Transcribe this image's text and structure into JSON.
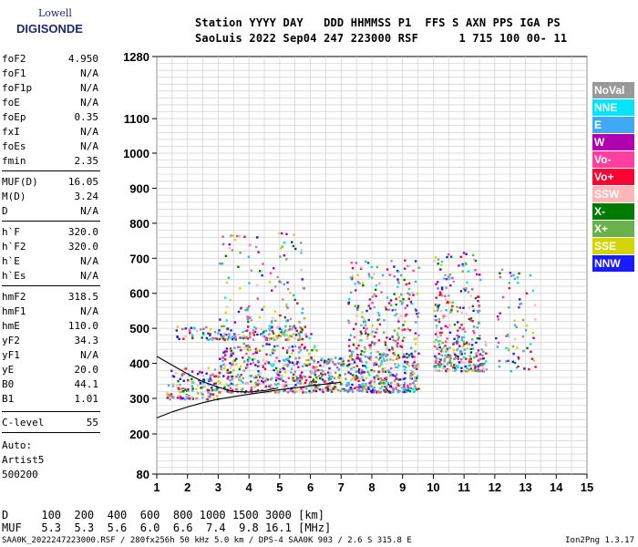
{
  "logo": {
    "line1": "Lowell",
    "line2": "DIGISONDE"
  },
  "header": {
    "line1": "Station YYYY DAY   DDD HHMMSS P1  FFS S AXN PPS IGA PS",
    "line2": "SaoLuis 2022 Sep04 247 223000 RSF      1 715 100 00- 11"
  },
  "params": [
    {
      "k": "foF2",
      "v": "4.950"
    },
    {
      "k": "foF1",
      "v": "N/A"
    },
    {
      "k": "foF1p",
      "v": "N/A"
    },
    {
      "k": "foE",
      "v": "N/A"
    },
    {
      "k": "foEp",
      "v": "0.35"
    },
    {
      "k": "fxI",
      "v": "N/A"
    },
    {
      "k": "foEs",
      "v": "N/A"
    },
    {
      "k": "fmin",
      "v": "2.35"
    },
    {
      "k": "MUF(D)",
      "v": "16.05"
    },
    {
      "k": "M(D)",
      "v": "3.24"
    },
    {
      "k": "D",
      "v": "N/A"
    },
    {
      "k": "h`F",
      "v": "320.0"
    },
    {
      "k": "h`F2",
      "v": "320.0"
    },
    {
      "k": "h`E",
      "v": "N/A"
    },
    {
      "k": "h`Es",
      "v": "N/A"
    },
    {
      "k": "hmF2",
      "v": "318.5"
    },
    {
      "k": "hmF1",
      "v": "N/A"
    },
    {
      "k": "hmE",
      "v": "110.0"
    },
    {
      "k": "yF2",
      "v": "34.3"
    },
    {
      "k": "yF1",
      "v": "N/A"
    },
    {
      "k": "yE",
      "v": "20.0"
    },
    {
      "k": "B0",
      "v": "44.1"
    },
    {
      "k": "B1",
      "v": "1.01"
    },
    {
      "k": "C-level",
      "v": "55"
    }
  ],
  "auto": [
    "Auto:",
    "Artist5",
    "500200"
  ],
  "legend": [
    {
      "label": "NoVal",
      "bg": "#999999",
      "fg": "#ffffff"
    },
    {
      "label": "NNE",
      "bg": "#00e5ff",
      "fg": "#ffffff"
    },
    {
      "label": "E",
      "bg": "#3fa9f5",
      "fg": "#ffffff"
    },
    {
      "label": "W",
      "bg": "#b000b0",
      "fg": "#ffffff"
    },
    {
      "label": "Vo-",
      "bg": "#ff3fa0",
      "fg": "#ffffff"
    },
    {
      "label": "Vo+",
      "bg": "#ff0033",
      "fg": "#ffffff"
    },
    {
      "label": "SSW",
      "bg": "#ffb6b6",
      "fg": "#ffffff"
    },
    {
      "label": "X-",
      "bg": "#007a00",
      "fg": "#ffffff"
    },
    {
      "label": "X+",
      "bg": "#6ab04c",
      "fg": "#ffffff"
    },
    {
      "label": "SSE",
      "bg": "#d4d400",
      "fg": "#ffffff"
    },
    {
      "label": "NNW",
      "bg": "#1a1aff",
      "fg": "#ffffff"
    }
  ],
  "footer": {
    "d_row": "D     100  200  400  600  800 1000 1500 3000 [km]",
    "muf_row": "MUF   5.3  5.3  5.6  6.0  6.6  7.4  9.8 16.1 [MHz]",
    "file_line": "SAA0K_2022247223000.RSF / 280fx256h 50 kHz 5.0 km / DPS-4 SAA0K 903 / 2.6 S 315.8 E",
    "version": "Ion2Png 1.3.17"
  },
  "chart_data": {
    "type": "scatter",
    "title": "",
    "xlabel": "",
    "ylabel": "",
    "xlim": [
      1,
      15
    ],
    "ylim": [
      80,
      1280
    ],
    "x_ticks": [
      1,
      2,
      3,
      4,
      5,
      6,
      7,
      8,
      9,
      10,
      11,
      12,
      13,
      14,
      15
    ],
    "y_ticks": [
      80,
      200,
      300,
      400,
      500,
      600,
      700,
      800,
      900,
      1000,
      1100,
      1280
    ],
    "grid": true,
    "clusters": [
      {
        "name": "low-band F-trace",
        "x": [
          1.3,
          3.0
        ],
        "y": [
          300,
          390
        ],
        "density": 150
      },
      {
        "name": "band-1 multihop",
        "x": [
          1.6,
          3.0
        ],
        "y": [
          470,
          510
        ],
        "density": 40
      },
      {
        "name": "F-trace main",
        "x": [
          3.0,
          6.2
        ],
        "y": [
          320,
          460
        ],
        "density": 380
      },
      {
        "name": "second hop",
        "x": [
          3.0,
          6.0
        ],
        "y": [
          470,
          510
        ],
        "density": 140
      },
      {
        "name": "spread F",
        "x": [
          3.0,
          5.8
        ],
        "y": [
          520,
          780
        ],
        "density": 110
      },
      {
        "name": "mid band",
        "x": [
          6.0,
          9.5
        ],
        "y": [
          320,
          420
        ],
        "density": 420
      },
      {
        "name": "mid band upper",
        "x": [
          7.2,
          9.5
        ],
        "y": [
          420,
          700
        ],
        "density": 260
      },
      {
        "name": "high band",
        "x": [
          10.0,
          11.7
        ],
        "y": [
          380,
          470
        ],
        "density": 200
      },
      {
        "name": "high band upper",
        "x": [
          10.0,
          11.5
        ],
        "y": [
          470,
          720
        ],
        "density": 150
      },
      {
        "name": "NNE spread",
        "x": [
          12.0,
          13.3
        ],
        "y": [
          380,
          680
        ],
        "density": 70
      }
    ],
    "profile_curve": {
      "x": [
        1.0,
        1.5,
        2.0,
        2.5,
        3.0,
        3.5,
        4.0,
        4.5,
        5.0,
        5.5,
        6.0,
        6.5,
        7.0
      ],
      "y": [
        245,
        262,
        276,
        288,
        298,
        305,
        312,
        318,
        325,
        330,
        336,
        341,
        346
      ]
    },
    "trace_curve": {
      "x": [
        1.0,
        1.5,
        2.0,
        2.5,
        3.0,
        3.5,
        4.0,
        4.5,
        4.95
      ],
      "y": [
        420,
        395,
        370,
        348,
        332,
        320,
        318,
        322,
        330
      ]
    }
  }
}
